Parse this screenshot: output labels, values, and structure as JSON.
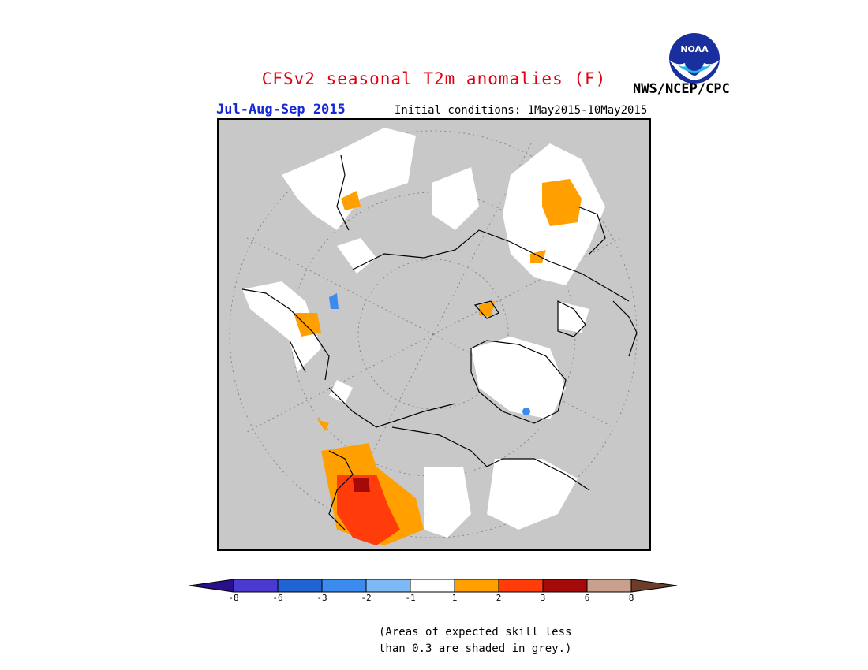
{
  "header": {
    "title": "CFSv2 seasonal T2m anomalies (F)",
    "title_color": "#e0000f",
    "period": "Jul-Aug-Sep 2015",
    "period_color": "#1428d8",
    "initial_conditions": "Initial conditions: 1May2015-10May2015",
    "agency": "NWS/NCEP/CPC",
    "logo_text": "NOAA"
  },
  "map": {
    "projection": "north-polar-stereographic",
    "background_color": "#c8c8c8",
    "low_skill_color": "#c8c8c8",
    "neutral_color": "#ffffff"
  },
  "legend": {
    "colors": [
      "#2a0f8a",
      "#4a3ad0",
      "#1f64d2",
      "#3c8cf0",
      "#7db9f5",
      "#ffffff",
      "#ffa000",
      "#ff3c0a",
      "#a50a0a",
      "#c8a08c",
      "#6e3c28"
    ],
    "labels": [
      "-8",
      "-6",
      "-3",
      "-2",
      "-1",
      "1",
      "2",
      "3",
      "6",
      "8"
    ]
  },
  "note": {
    "line1": "(Areas of expected skill less",
    "line2": "than 0.3 are shaded in grey.)"
  }
}
